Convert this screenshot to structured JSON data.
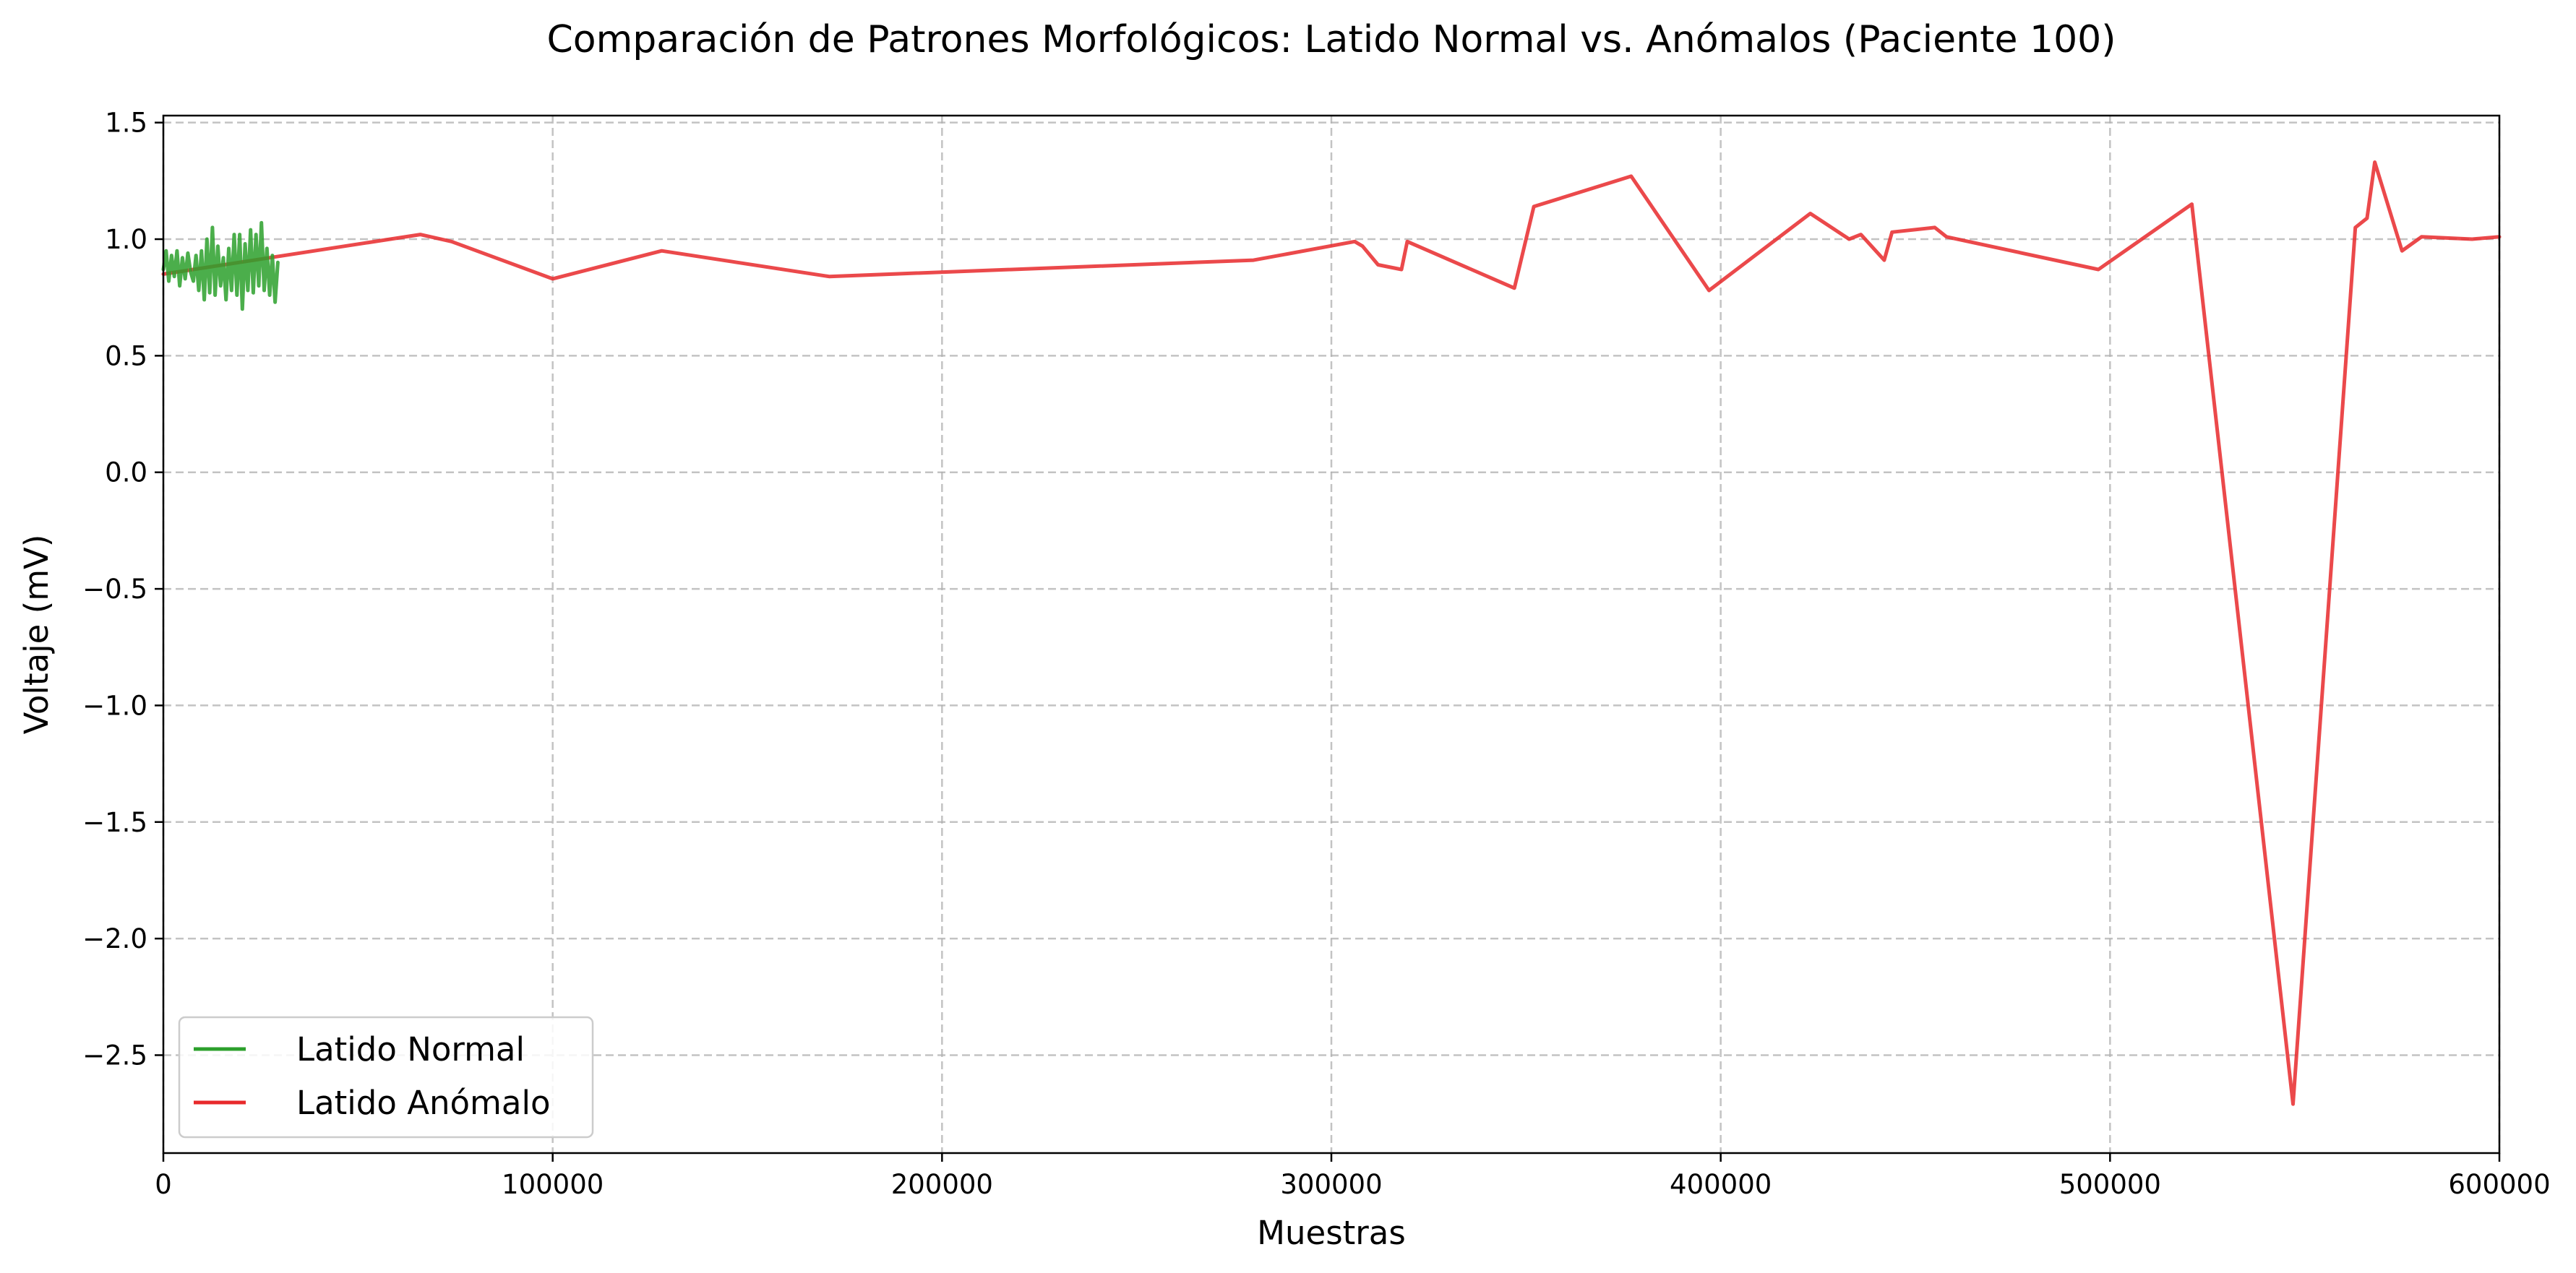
{
  "chart_data": {
    "type": "line",
    "title": "Comparación de Patrones Morfológicos: Latido Normal vs. Anómalos (Paciente 100)",
    "xlabel": "Muestras",
    "ylabel": "Voltaje (mV)",
    "xlim": [
      0,
      600000
    ],
    "ylim": [
      -2.92,
      1.53
    ],
    "grid": true,
    "legend_position": "lower-left",
    "xticks": [
      {
        "value": 0,
        "label": "0"
      },
      {
        "value": 100000,
        "label": "100000"
      },
      {
        "value": 200000,
        "label": "200000"
      },
      {
        "value": 300000,
        "label": "300000"
      },
      {
        "value": 400000,
        "label": "400000"
      },
      {
        "value": 500000,
        "label": "500000"
      },
      {
        "value": 600000,
        "label": "600000"
      }
    ],
    "yticks": [
      {
        "value": 1.5,
        "label": "1.5"
      },
      {
        "value": 1.0,
        "label": "1.0"
      },
      {
        "value": 0.5,
        "label": "0.5"
      },
      {
        "value": 0.0,
        "label": "0.0"
      },
      {
        "value": -0.5,
        "label": "−0.5"
      },
      {
        "value": -1.0,
        "label": "−1.0"
      },
      {
        "value": -1.5,
        "label": "−1.5"
      },
      {
        "value": -2.0,
        "label": "−2.0"
      },
      {
        "value": -2.5,
        "label": "−2.5"
      }
    ],
    "series": [
      {
        "name": "Latido Normal",
        "color": "#2ca02c",
        "points": [
          [
            0,
            0.87
          ],
          [
            700,
            0.95
          ],
          [
            1400,
            0.82
          ],
          [
            2100,
            0.93
          ],
          [
            2800,
            0.84
          ],
          [
            3500,
            0.95
          ],
          [
            4200,
            0.8
          ],
          [
            4900,
            0.92
          ],
          [
            5600,
            0.83
          ],
          [
            6300,
            0.94
          ],
          [
            7000,
            0.86
          ],
          [
            7700,
            0.82
          ],
          [
            8400,
            0.93
          ],
          [
            9100,
            0.78
          ],
          [
            9800,
            0.95
          ],
          [
            10500,
            0.74
          ],
          [
            11200,
            1.0
          ],
          [
            11900,
            0.77
          ],
          [
            12600,
            1.05
          ],
          [
            13300,
            0.76
          ],
          [
            14000,
            0.97
          ],
          [
            14700,
            0.8
          ],
          [
            15400,
            0.92
          ],
          [
            16100,
            0.74
          ],
          [
            16800,
            0.96
          ],
          [
            17500,
            0.78
          ],
          [
            18200,
            1.02
          ],
          [
            18900,
            0.76
          ],
          [
            19600,
            1.02
          ],
          [
            20300,
            0.7
          ],
          [
            21000,
            0.98
          ],
          [
            21700,
            0.78
          ],
          [
            22400,
            1.04
          ],
          [
            23100,
            0.77
          ],
          [
            23800,
            1.02
          ],
          [
            24500,
            0.8
          ],
          [
            25200,
            1.07
          ],
          [
            25900,
            0.78
          ],
          [
            26600,
            0.96
          ],
          [
            27300,
            0.76
          ],
          [
            28000,
            0.93
          ],
          [
            28700,
            0.73
          ],
          [
            29400,
            0.9
          ]
        ]
      },
      {
        "name": "Latido Anómalo",
        "color": "#e8292b",
        "points": [
          [
            0,
            0.85
          ],
          [
            66000,
            1.02
          ],
          [
            74000,
            0.99
          ],
          [
            100000,
            0.83
          ],
          [
            128000,
            0.95
          ],
          [
            171000,
            0.84
          ],
          [
            280000,
            0.91
          ],
          [
            306000,
            0.99
          ],
          [
            308000,
            0.97
          ],
          [
            312000,
            0.89
          ],
          [
            318000,
            0.87
          ],
          [
            319500,
            0.99
          ],
          [
            347000,
            0.79
          ],
          [
            352000,
            1.14
          ],
          [
            377000,
            1.27
          ],
          [
            397000,
            0.78
          ],
          [
            423000,
            1.11
          ],
          [
            433000,
            1.0
          ],
          [
            436000,
            1.02
          ],
          [
            442000,
            0.91
          ],
          [
            444000,
            1.03
          ],
          [
            455000,
            1.05
          ],
          [
            458000,
            1.01
          ],
          [
            497000,
            0.87
          ],
          [
            521000,
            1.15
          ],
          [
            547000,
            -2.71
          ],
          [
            563000,
            1.05
          ],
          [
            566000,
            1.09
          ],
          [
            568000,
            1.33
          ],
          [
            575000,
            0.95
          ],
          [
            580000,
            1.01
          ],
          [
            593000,
            1.0
          ],
          [
            600000,
            1.01
          ]
        ]
      }
    ]
  }
}
